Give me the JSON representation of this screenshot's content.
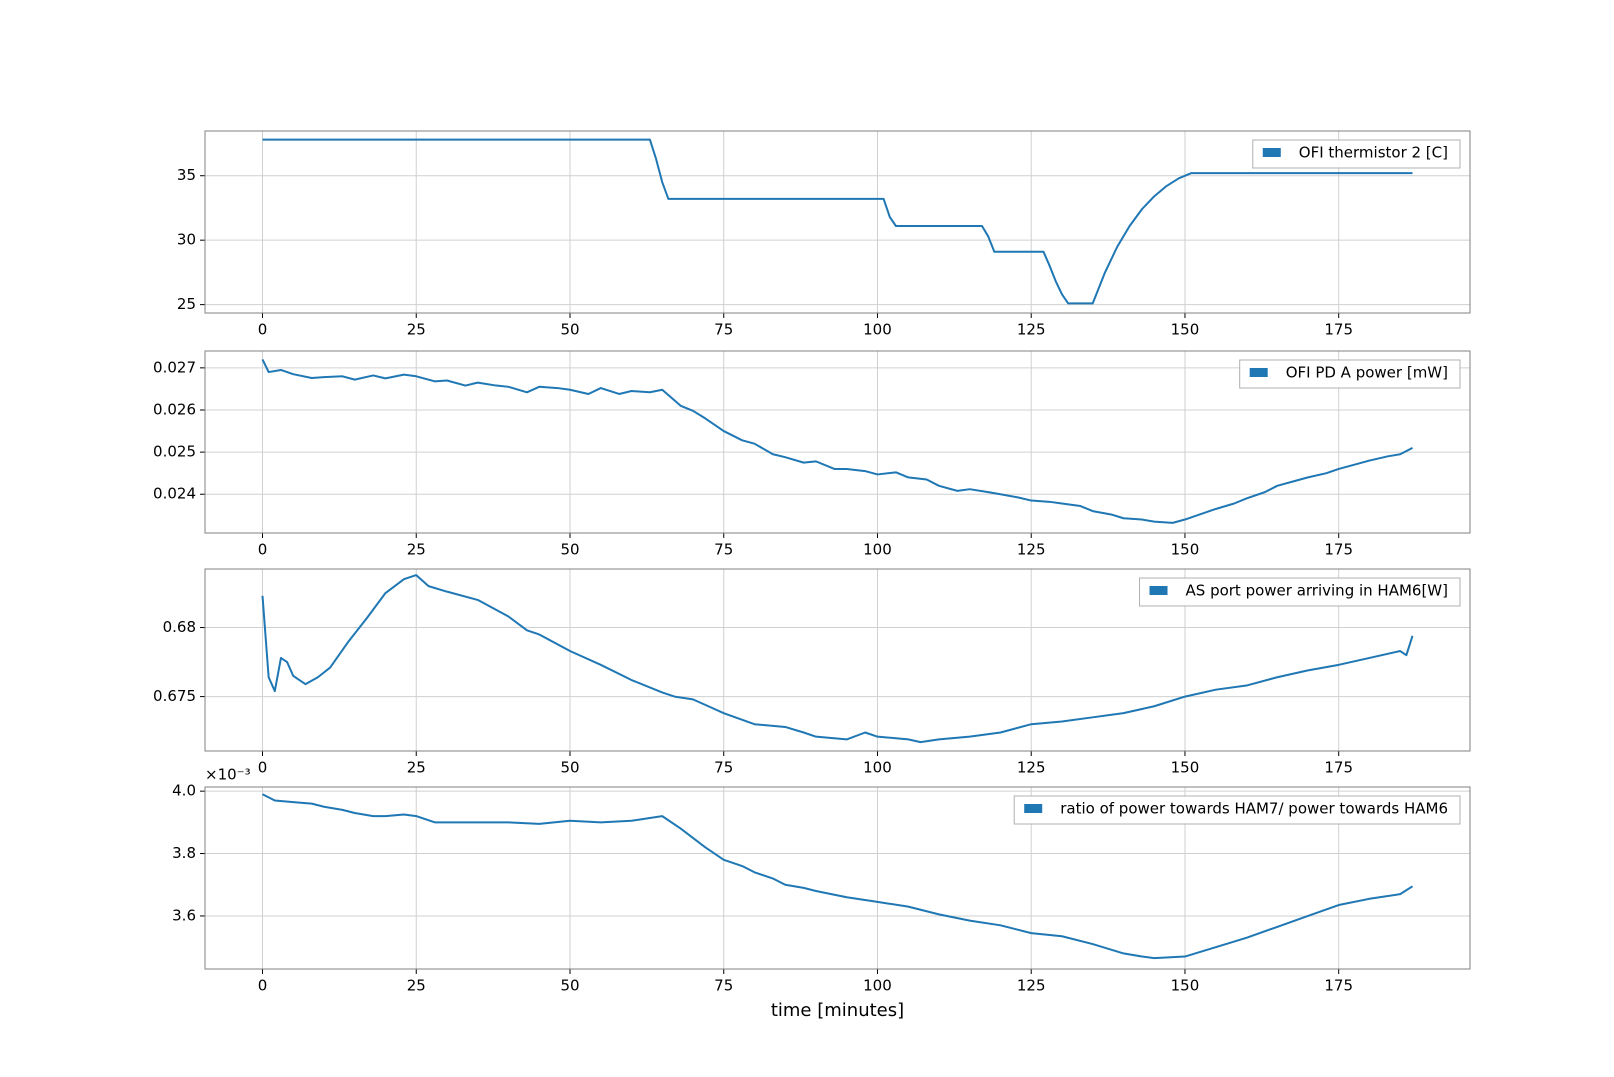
{
  "chart_data": [
    {
      "type": "line",
      "legend": "upper right",
      "grid": true,
      "x": [
        0,
        63,
        64,
        65,
        66,
        101,
        102,
        103,
        117,
        118,
        119,
        127,
        128,
        129,
        130,
        131,
        135,
        137,
        139,
        141,
        143,
        145,
        147,
        149,
        151,
        187
      ],
      "series": [
        {
          "name": "OFI thermistor 2 [C]",
          "color": "#1f77b4",
          "values": [
            37.8,
            37.8,
            36.3,
            34.5,
            33.2,
            33.2,
            31.8,
            31.1,
            31.1,
            30.3,
            29.1,
            29.1,
            28.0,
            26.8,
            25.8,
            25.1,
            25.1,
            27.5,
            29.5,
            31.1,
            32.4,
            33.4,
            34.2,
            34.8,
            35.2,
            35.2
          ]
        }
      ],
      "xlim": [
        -9.35,
        196.35
      ],
      "xticks": [
        0,
        25,
        50,
        75,
        100,
        125,
        150,
        175
      ],
      "ylim": [
        24.35,
        38.47
      ],
      "yticks": [
        25,
        30,
        35
      ]
    },
    {
      "type": "line",
      "legend": "upper right",
      "grid": true,
      "x": [
        0,
        1,
        3,
        5,
        8,
        10,
        13,
        15,
        18,
        20,
        23,
        25,
        28,
        30,
        33,
        35,
        38,
        40,
        43,
        45,
        48,
        50,
        53,
        55,
        58,
        60,
        63,
        65,
        68,
        70,
        72,
        75,
        78,
        80,
        83,
        85,
        88,
        90,
        93,
        95,
        98,
        100,
        103,
        105,
        108,
        110,
        113,
        115,
        118,
        120,
        123,
        125,
        128,
        130,
        133,
        135,
        138,
        140,
        143,
        145,
        148,
        150,
        153,
        155,
        158,
        160,
        163,
        165,
        168,
        170,
        173,
        175,
        178,
        180,
        183,
        185,
        187
      ],
      "series": [
        {
          "name": "OFI PD A power [mW]",
          "color": "#1f77b4",
          "values": [
            0.0272,
            0.0269,
            0.02695,
            0.02685,
            0.02676,
            0.02678,
            0.0268,
            0.02672,
            0.02682,
            0.02675,
            0.02684,
            0.0268,
            0.02668,
            0.0267,
            0.02658,
            0.02665,
            0.02658,
            0.02655,
            0.02642,
            0.02655,
            0.02652,
            0.02648,
            0.02638,
            0.02652,
            0.02638,
            0.02645,
            0.02642,
            0.02648,
            0.0261,
            0.02598,
            0.0258,
            0.0255,
            0.02528,
            0.0252,
            0.02495,
            0.02488,
            0.02475,
            0.02478,
            0.0246,
            0.0246,
            0.02455,
            0.02447,
            0.02452,
            0.0244,
            0.02435,
            0.0242,
            0.02408,
            0.02412,
            0.02405,
            0.024,
            0.02392,
            0.02385,
            0.02382,
            0.02378,
            0.02372,
            0.0236,
            0.02352,
            0.02343,
            0.0234,
            0.02335,
            0.02332,
            0.0234,
            0.02355,
            0.02365,
            0.02378,
            0.0239,
            0.02405,
            0.0242,
            0.02432,
            0.0244,
            0.0245,
            0.0246,
            0.02472,
            0.0248,
            0.0249,
            0.02495,
            0.0251
          ]
        }
      ],
      "xlim": [
        -9.35,
        196.35
      ],
      "xticks": [
        0,
        25,
        50,
        75,
        100,
        125,
        150,
        175
      ],
      "ylim": [
        0.02308,
        0.0274
      ],
      "yticks": [
        0.024,
        0.025,
        0.026,
        0.027
      ]
    },
    {
      "type": "line",
      "legend": "upper right",
      "grid": true,
      "x": [
        0,
        1,
        2,
        3,
        4,
        5,
        6,
        7,
        9,
        11,
        14,
        17,
        20,
        23,
        25,
        27,
        30,
        35,
        40,
        43,
        45,
        50,
        55,
        60,
        65,
        67,
        70,
        73,
        75,
        80,
        85,
        88,
        90,
        95,
        98,
        100,
        105,
        107,
        110,
        115,
        120,
        125,
        130,
        135,
        140,
        145,
        150,
        155,
        160,
        165,
        170,
        175,
        180,
        185,
        186,
        187
      ],
      "series": [
        {
          "name": "AS port power arriving in HAM6[W]",
          "color": "#1f77b4",
          "values": [
            0.6823,
            0.6764,
            0.6754,
            0.6778,
            0.6775,
            0.6765,
            0.6762,
            0.6759,
            0.6764,
            0.6771,
            0.679,
            0.6807,
            0.6825,
            0.6835,
            0.6838,
            0.683,
            0.6826,
            0.682,
            0.6808,
            0.6798,
            0.6795,
            0.6783,
            0.6773,
            0.6762,
            0.6753,
            0.675,
            0.6748,
            0.6742,
            0.6738,
            0.673,
            0.6728,
            0.6724,
            0.6721,
            0.6719,
            0.6724,
            0.6721,
            0.6719,
            0.6717,
            0.6719,
            0.6721,
            0.6724,
            0.673,
            0.6732,
            0.6735,
            0.6738,
            0.6743,
            0.675,
            0.6755,
            0.6758,
            0.6764,
            0.6769,
            0.6773,
            0.6778,
            0.6783,
            0.678,
            0.6794
          ]
        }
      ],
      "xlim": [
        -9.35,
        196.35
      ],
      "xticks": [
        0,
        25,
        50,
        75,
        100,
        125,
        150,
        175
      ],
      "ylim": [
        0.67106,
        0.68424
      ],
      "yticks": [
        0.675,
        0.68
      ]
    },
    {
      "type": "line",
      "legend": "upper right",
      "grid": true,
      "xlabel": "time [minutes]",
      "y_offset_label": "×10⁻³",
      "x": [
        0,
        2,
        5,
        8,
        10,
        13,
        15,
        18,
        20,
        23,
        25,
        28,
        30,
        35,
        40,
        45,
        50,
        55,
        60,
        65,
        68,
        72,
        75,
        78,
        80,
        83,
        85,
        88,
        90,
        95,
        100,
        105,
        110,
        115,
        120,
        125,
        130,
        135,
        140,
        143,
        145,
        150,
        155,
        160,
        165,
        170,
        175,
        180,
        185,
        187
      ],
      "series": [
        {
          "name": "ratio of power towards HAM7/ power towards HAM6",
          "color": "#1f77b4",
          "values": [
            0.00399,
            0.00397,
            0.003965,
            0.00396,
            0.00395,
            0.00394,
            0.00393,
            0.00392,
            0.00392,
            0.003925,
            0.00392,
            0.0039,
            0.0039,
            0.0039,
            0.0039,
            0.003895,
            0.003905,
            0.0039,
            0.003905,
            0.00392,
            0.00388,
            0.00382,
            0.00378,
            0.00376,
            0.00374,
            0.00372,
            0.0037,
            0.00369,
            0.00368,
            0.00366,
            0.003645,
            0.00363,
            0.003605,
            0.003585,
            0.00357,
            0.003545,
            0.003535,
            0.00351,
            0.00348,
            0.00347,
            0.003465,
            0.00347,
            0.0035,
            0.00353,
            0.003565,
            0.0036,
            0.003635,
            0.003655,
            0.00367,
            0.003695
          ]
        }
      ],
      "xlim": [
        -9.35,
        196.35
      ],
      "xticks": [
        0,
        25,
        50,
        75,
        100,
        125,
        150,
        175
      ],
      "ylim": [
        0.00343,
        0.0040133
      ],
      "yticks": [
        {
          "value": 0.0036,
          "label": "3.6"
        },
        {
          "value": 0.0038,
          "label": "3.8"
        },
        {
          "value": 0.004,
          "label": "4.0"
        }
      ]
    }
  ]
}
